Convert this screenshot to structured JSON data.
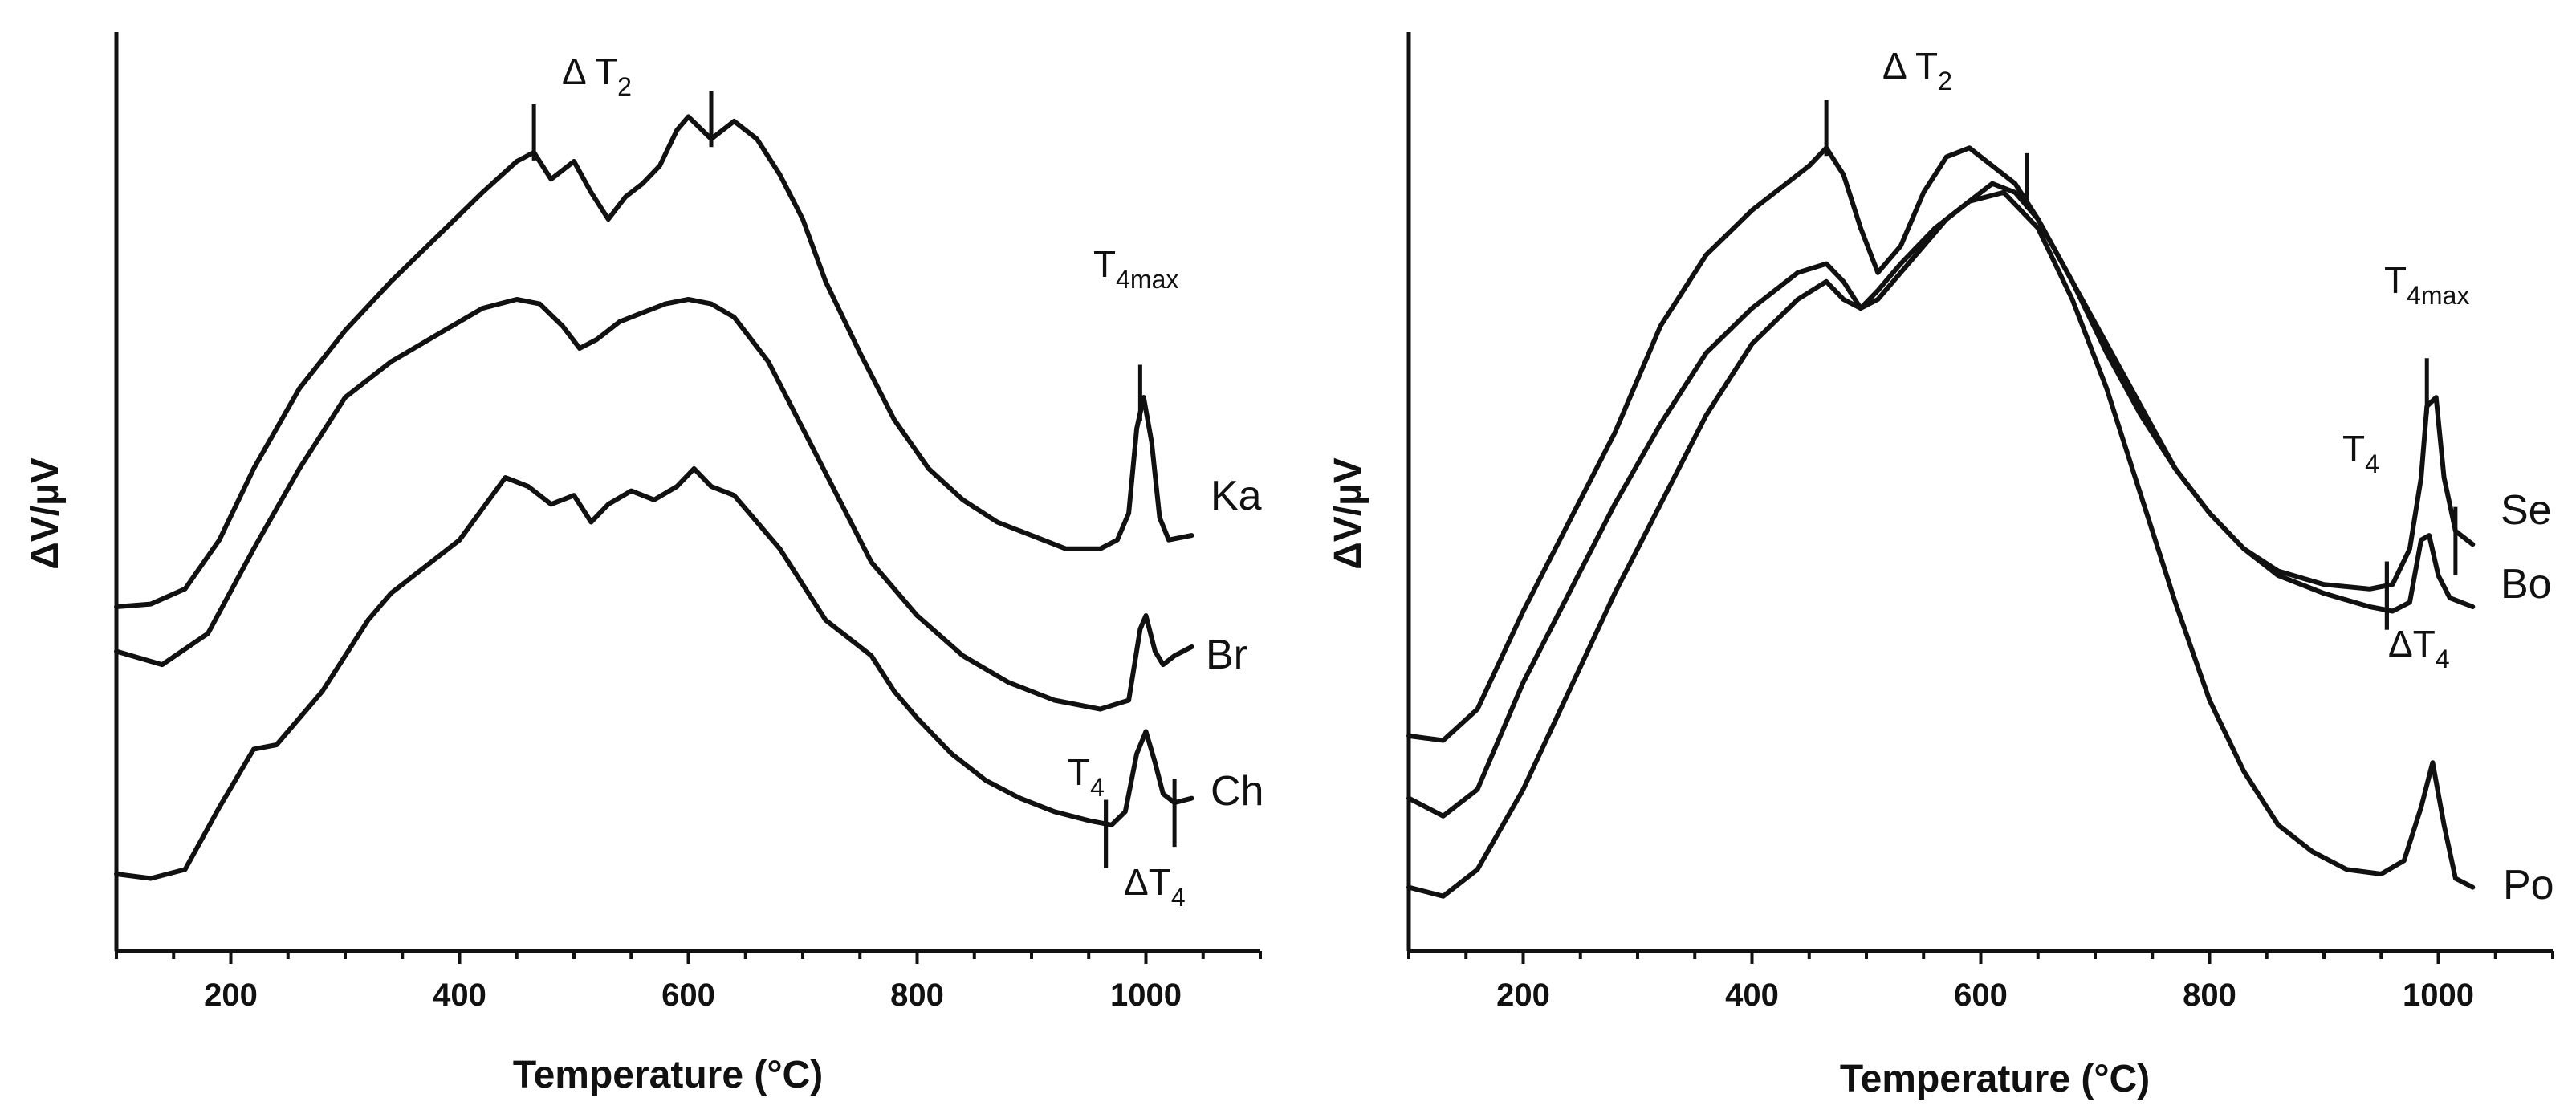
{
  "chart_data": [
    {
      "type": "line",
      "panel": "left",
      "title": "",
      "xlabel": "Temperature (°C)",
      "ylabel": "ΔV/µV",
      "xlim": [
        100,
        1100
      ],
      "ylim": [
        0,
        1
      ],
      "xticks": [
        200,
        400,
        600,
        800,
        1000
      ],
      "xtick_labels": [
        "200",
        "400",
        "600",
        "800",
        "1000"
      ],
      "y_ticks_shown": false,
      "series": [
        {
          "name": "Ka",
          "x": [
            100,
            130,
            160,
            190,
            220,
            260,
            300,
            340,
            380,
            420,
            450,
            465,
            480,
            500,
            515,
            530,
            545,
            560,
            575,
            590,
            600,
            620,
            640,
            660,
            680,
            700,
            720,
            750,
            780,
            810,
            840,
            870,
            900,
            930,
            960,
            975,
            985,
            992,
            998,
            1005,
            1012,
            1020,
            1040
          ],
          "y": [
            0.355,
            0.358,
            0.375,
            0.43,
            0.51,
            0.6,
            0.665,
            0.72,
            0.77,
            0.82,
            0.855,
            0.865,
            0.835,
            0.855,
            0.82,
            0.79,
            0.815,
            0.83,
            0.85,
            0.89,
            0.905,
            0.88,
            0.9,
            0.88,
            0.84,
            0.79,
            0.72,
            0.64,
            0.565,
            0.51,
            0.475,
            0.45,
            0.435,
            0.42,
            0.42,
            0.43,
            0.46,
            0.555,
            0.59,
            0.54,
            0.455,
            0.43,
            0.435
          ]
        },
        {
          "name": "Br",
          "x": [
            100,
            140,
            180,
            220,
            260,
            300,
            340,
            380,
            420,
            450,
            470,
            490,
            505,
            520,
            540,
            560,
            580,
            600,
            620,
            640,
            670,
            700,
            730,
            760,
            800,
            840,
            880,
            920,
            960,
            985,
            995,
            1000,
            1008,
            1015,
            1025,
            1040
          ],
          "y": [
            0.305,
            0.29,
            0.325,
            0.42,
            0.51,
            0.59,
            0.63,
            0.66,
            0.69,
            0.7,
            0.695,
            0.67,
            0.645,
            0.655,
            0.675,
            0.685,
            0.695,
            0.7,
            0.695,
            0.68,
            0.63,
            0.555,
            0.48,
            0.405,
            0.345,
            0.3,
            0.27,
            0.25,
            0.24,
            0.25,
            0.33,
            0.345,
            0.305,
            0.29,
            0.3,
            0.31
          ]
        },
        {
          "name": "Ch",
          "x": [
            100,
            130,
            160,
            190,
            220,
            240,
            260,
            280,
            300,
            320,
            340,
            370,
            400,
            420,
            440,
            460,
            480,
            500,
            515,
            530,
            550,
            570,
            590,
            605,
            620,
            640,
            660,
            680,
            700,
            720,
            740,
            760,
            780,
            800,
            830,
            860,
            890,
            920,
            950,
            970,
            982,
            992,
            1000,
            1008,
            1015,
            1025,
            1040
          ],
          "y": [
            0.055,
            0.05,
            0.06,
            0.13,
            0.195,
            0.2,
            0.23,
            0.26,
            0.3,
            0.34,
            0.37,
            0.4,
            0.43,
            0.465,
            0.5,
            0.49,
            0.47,
            0.48,
            0.45,
            0.47,
            0.485,
            0.475,
            0.49,
            0.51,
            0.49,
            0.48,
            0.45,
            0.42,
            0.38,
            0.34,
            0.32,
            0.3,
            0.26,
            0.23,
            0.19,
            0.16,
            0.14,
            0.125,
            0.115,
            0.11,
            0.125,
            0.19,
            0.215,
            0.18,
            0.145,
            0.135,
            0.14
          ]
        }
      ],
      "annotations": [
        {
          "text": "ΔT2",
          "x": 465,
          "x2": 620,
          "type": "range-markers"
        },
        {
          "text": "T4max",
          "x": 995,
          "type": "marker"
        },
        {
          "text": "T4",
          "x": 965,
          "type": "marker"
        },
        {
          "text": "ΔT4",
          "x": 965,
          "x2": 1025,
          "type": "range-markers"
        }
      ]
    },
    {
      "type": "line",
      "panel": "right",
      "title": "",
      "xlabel": "Temperature (°C)",
      "ylabel": "ΔV/µV",
      "xlim": [
        100,
        1100
      ],
      "ylim": [
        0,
        1
      ],
      "xticks": [
        200,
        400,
        600,
        800,
        1000
      ],
      "xtick_labels": [
        "200",
        "400",
        "600",
        "800",
        "1000"
      ],
      "y_ticks_shown": false,
      "series": [
        {
          "name": "Se",
          "x": [
            100,
            130,
            160,
            200,
            240,
            280,
            320,
            360,
            400,
            430,
            450,
            465,
            480,
            495,
            510,
            530,
            550,
            570,
            590,
            610,
            630,
            650,
            680,
            710,
            740,
            770,
            800,
            830,
            860,
            900,
            940,
            960,
            975,
            985,
            990,
            998,
            1005,
            1015,
            1030
          ],
          "y": [
            0.21,
            0.205,
            0.24,
            0.35,
            0.45,
            0.55,
            0.67,
            0.75,
            0.8,
            0.83,
            0.85,
            0.87,
            0.84,
            0.78,
            0.73,
            0.76,
            0.82,
            0.86,
            0.87,
            0.85,
            0.83,
            0.79,
            0.72,
            0.65,
            0.58,
            0.51,
            0.46,
            0.42,
            0.395,
            0.38,
            0.375,
            0.38,
            0.42,
            0.5,
            0.58,
            0.59,
            0.5,
            0.44,
            0.425
          ]
        },
        {
          "name": "Bo",
          "x": [
            100,
            130,
            160,
            200,
            240,
            280,
            320,
            360,
            400,
            440,
            465,
            480,
            495,
            510,
            530,
            550,
            570,
            590,
            610,
            630,
            650,
            680,
            710,
            740,
            770,
            800,
            830,
            860,
            900,
            940,
            960,
            975,
            985,
            992,
            1000,
            1010,
            1030
          ],
          "y": [
            0.14,
            0.12,
            0.15,
            0.27,
            0.37,
            0.47,
            0.56,
            0.64,
            0.69,
            0.73,
            0.74,
            0.72,
            0.69,
            0.7,
            0.73,
            0.76,
            0.79,
            0.81,
            0.83,
            0.82,
            0.79,
            0.72,
            0.64,
            0.57,
            0.51,
            0.46,
            0.42,
            0.39,
            0.37,
            0.355,
            0.35,
            0.36,
            0.43,
            0.435,
            0.39,
            0.365,
            0.355
          ]
        },
        {
          "name": "Po",
          "x": [
            100,
            130,
            160,
            200,
            240,
            280,
            320,
            360,
            400,
            440,
            465,
            480,
            495,
            510,
            530,
            560,
            590,
            620,
            650,
            680,
            710,
            740,
            770,
            800,
            830,
            860,
            890,
            920,
            950,
            970,
            985,
            995,
            1005,
            1015,
            1030
          ],
          "y": [
            0.04,
            0.03,
            0.06,
            0.15,
            0.26,
            0.37,
            0.47,
            0.57,
            0.65,
            0.7,
            0.72,
            0.7,
            0.69,
            0.71,
            0.74,
            0.78,
            0.81,
            0.82,
            0.78,
            0.7,
            0.6,
            0.48,
            0.36,
            0.25,
            0.17,
            0.11,
            0.08,
            0.06,
            0.055,
            0.07,
            0.13,
            0.18,
            0.11,
            0.05,
            0.04
          ]
        }
      ],
      "annotations": [
        {
          "text": "ΔT2",
          "x": 465,
          "x2": 640,
          "type": "range-markers"
        },
        {
          "text": "T4max",
          "x": 990,
          "type": "marker"
        },
        {
          "text": "T4",
          "x": 955,
          "type": "marker"
        },
        {
          "text": "ΔT4",
          "x": 955,
          "x2": 1015,
          "type": "range-markers"
        }
      ]
    }
  ],
  "labels": {
    "delta_t2": "Δ T",
    "delta_t2_sub": "2",
    "t4": "T",
    "t4_sub": "4",
    "t4max_main": "T",
    "t4max_sub": "4max",
    "delta_t4": "ΔT",
    "delta_t4_sub": "4"
  }
}
